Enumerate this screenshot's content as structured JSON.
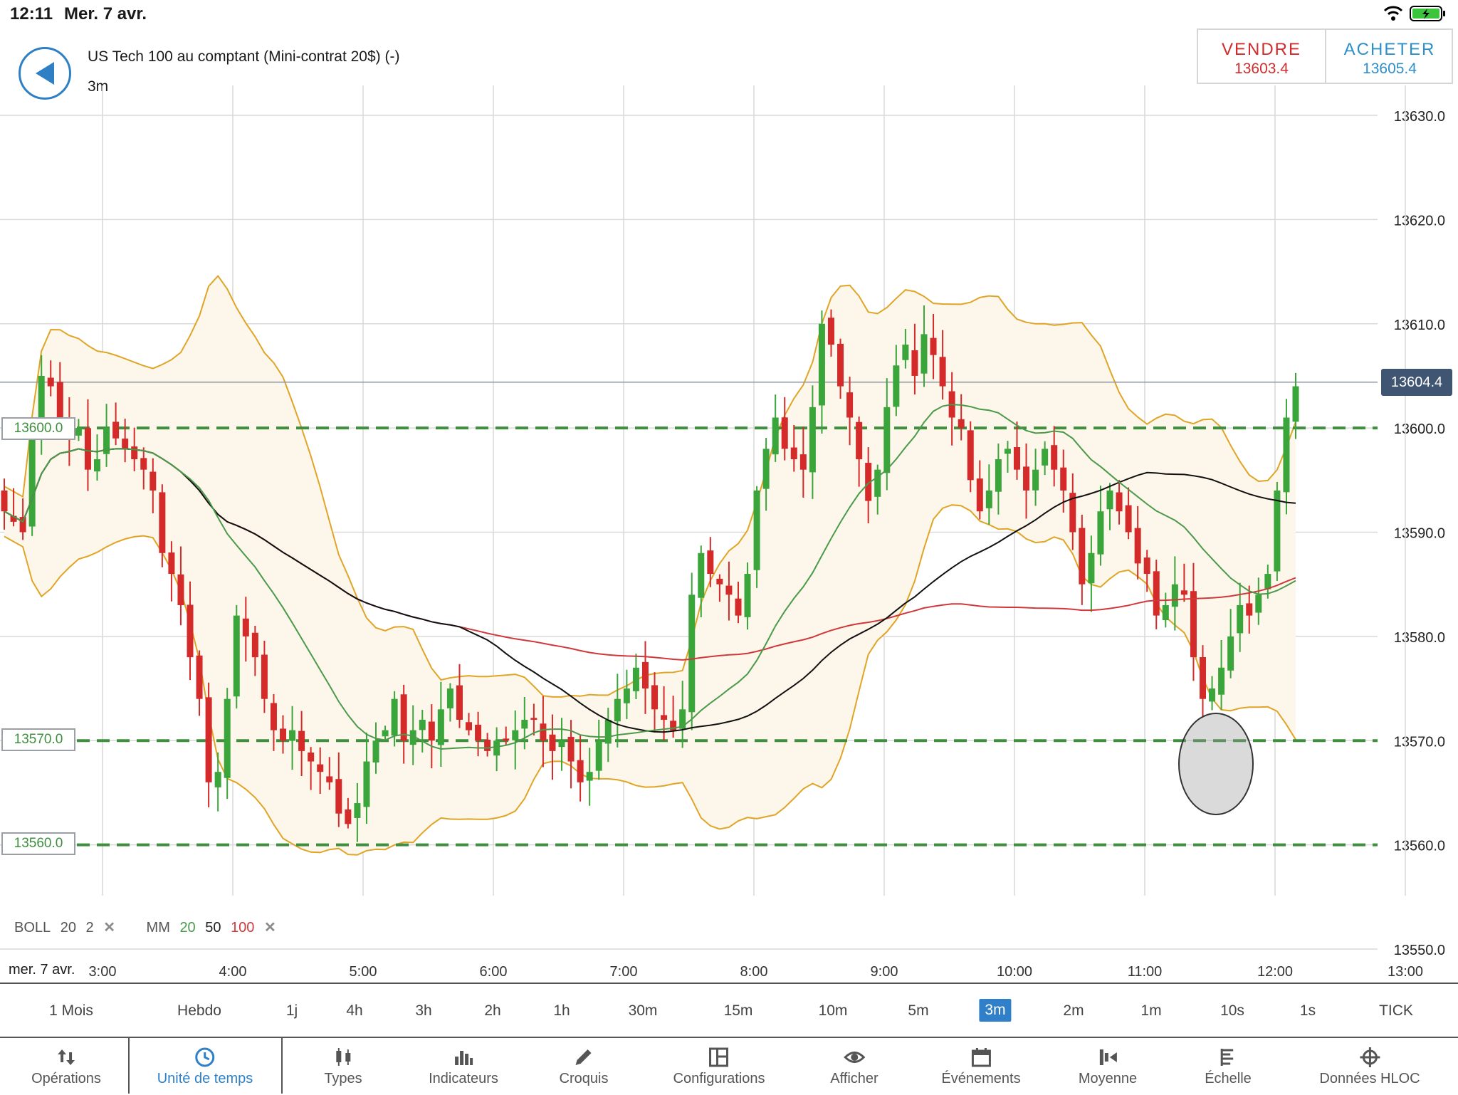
{
  "status": {
    "time": "12:11",
    "date": "Mer. 7 avr."
  },
  "instrument": {
    "name": "US Tech 100 au comptant (Mini-contrat 20$) (-)",
    "timeframe": "3m"
  },
  "trade": {
    "sell_label": "VENDRE",
    "sell_price": "13603.4",
    "buy_label": "ACHETER",
    "buy_price": "13605.4"
  },
  "colors": {
    "bull": "#3aa53a",
    "bear": "#d42a2a",
    "accent": "#2f80c8",
    "boll": "#e0a526",
    "ma20": "#4a9a4a",
    "ma50": "#111111",
    "ma100": "#d0393b"
  },
  "chart_data": {
    "type": "candlestick",
    "y_ticks": [
      "13630.0",
      "13620.0",
      "13610.0",
      "13600.0",
      "13590.0",
      "13580.0",
      "13570.0",
      "13560.0",
      "13550.0"
    ],
    "ylim": [
      13550,
      13630
    ],
    "x_ticks": [
      "3:00",
      "4:00",
      "5:00",
      "6:00",
      "7:00",
      "8:00",
      "9:00",
      "10:00",
      "11:00",
      "12:00",
      "13:00"
    ],
    "last_price": "13604.4",
    "levels": [
      "13600.0",
      "13570.0",
      "13560.0"
    ],
    "grid": true,
    "indicators": {
      "boll": {
        "label": "BOLL",
        "period": "20",
        "dev": "2"
      },
      "ma": {
        "label": "MM",
        "p1": "20",
        "p2": "50",
        "p3": "100"
      }
    },
    "closes": [
      13592,
      13591,
      13590,
      13600,
      13605,
      13604,
      13601,
      13599,
      13600,
      13596,
      13597,
      13600,
      13599,
      13598,
      13597,
      13596,
      13594,
      13588,
      13586,
      13583,
      13578,
      13574,
      13566,
      13567,
      13574,
      13582,
      13580,
      13578,
      13574,
      13571,
      13570,
      13571,
      13569,
      13568,
      13567,
      13566,
      13563,
      13562,
      13564,
      13568,
      13570,
      13571,
      13574,
      13570,
      13571,
      13572,
      13570,
      13573,
      13575,
      13572,
      13571,
      13570,
      13569,
      13570,
      13570,
      13571,
      13572,
      13572,
      13570,
      13569,
      13570,
      13568,
      13566,
      13567,
      13570,
      13572,
      13574,
      13575,
      13577,
      13575,
      13573,
      13572,
      13571,
      13573,
      13584,
      13588,
      13586,
      13585,
      13584,
      13582,
      13586,
      13594,
      13598,
      13601,
      13598,
      13597,
      13596,
      13602,
      13610,
      13608,
      13604,
      13601,
      13597,
      13593,
      13596,
      13602,
      13606,
      13608,
      13605,
      13609,
      13607,
      13604,
      13601,
      13600,
      13595,
      13592,
      13594,
      13597,
      13598,
      13596,
      13594,
      13596,
      13598,
      13596,
      13594,
      13590,
      13585,
      13588,
      13592,
      13594,
      13592,
      13590,
      13587,
      13586,
      13582,
      13583,
      13585,
      13584,
      13578,
      13574,
      13575,
      13577,
      13580,
      13583,
      13582,
      13584,
      13586,
      13594,
      13601,
      13604
    ],
    "date_label": "mer. 7 avr."
  },
  "timeframes": [
    "1 Mois",
    "Hebdo",
    "1j",
    "4h",
    "3h",
    "2h",
    "1h",
    "30m",
    "15m",
    "10m",
    "5m",
    "3m",
    "2m",
    "1m",
    "10s",
    "1s",
    "TICK"
  ],
  "active_timeframe_index": 11,
  "toolbar": [
    {
      "label": "Opérations",
      "icon": "sort-arrows-icon"
    },
    {
      "label": "Unité de temps",
      "icon": "clock-icon"
    },
    {
      "label": "Types",
      "icon": "candles-icon"
    },
    {
      "label": "Indicateurs",
      "icon": "bars-icon"
    },
    {
      "label": "Croquis",
      "icon": "pencil-icon"
    },
    {
      "label": "Configurations",
      "icon": "layout-icon"
    },
    {
      "label": "Afficher",
      "icon": "eye-icon"
    },
    {
      "label": "Événements",
      "icon": "calendar-icon"
    },
    {
      "label": "Moyenne",
      "icon": "average-icon"
    },
    {
      "label": "Échelle",
      "icon": "scale-icon"
    },
    {
      "label": "Données HLOC",
      "icon": "crosshair-icon"
    }
  ]
}
